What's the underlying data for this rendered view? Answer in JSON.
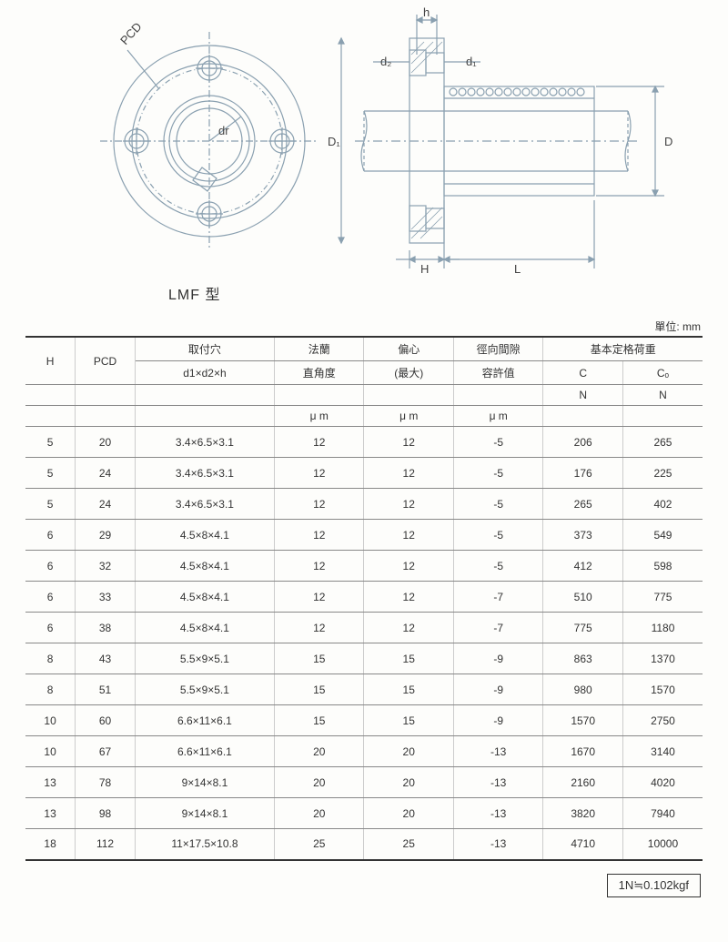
{
  "diagram": {
    "labels": {
      "pcd": "PCD",
      "dr": "dr",
      "h": "h",
      "d2": "d₂",
      "d1": "d₁",
      "D1": "D₁",
      "D": "D",
      "H": "H",
      "L": "L"
    },
    "model": "LMF 型",
    "stroke_color": "#8aa0b0",
    "stroke_dark": "#5a7080"
  },
  "unit_label": "單位: mm",
  "table": {
    "headers": {
      "h": "H",
      "pcd": "PCD",
      "mount": "取付穴",
      "mount_sub": "d1×d2×h",
      "flange": "法蘭",
      "flange_sub": "直角度",
      "ecc": "偏心",
      "ecc_sub": "(最大)",
      "radgap": "徑向間隙",
      "radgap_sub": "容許值",
      "load": "基本定格荷重",
      "c": "C",
      "co": "Cₒ",
      "n": "N",
      "um": "μ m"
    },
    "rows": [
      {
        "h": "5",
        "pcd": "20",
        "d": "3.4×6.5×3.1",
        "f": "12",
        "e": "12",
        "r": "-5",
        "c": "206",
        "co": "265"
      },
      {
        "h": "5",
        "pcd": "24",
        "d": "3.4×6.5×3.1",
        "f": "12",
        "e": "12",
        "r": "-5",
        "c": "176",
        "co": "225"
      },
      {
        "h": "5",
        "pcd": "24",
        "d": "3.4×6.5×3.1",
        "f": "12",
        "e": "12",
        "r": "-5",
        "c": "265",
        "co": "402"
      },
      {
        "h": "6",
        "pcd": "29",
        "d": "4.5×8×4.1",
        "f": "12",
        "e": "12",
        "r": "-5",
        "c": "373",
        "co": "549"
      },
      {
        "h": "6",
        "pcd": "32",
        "d": "4.5×8×4.1",
        "f": "12",
        "e": "12",
        "r": "-5",
        "c": "412",
        "co": "598"
      },
      {
        "h": "6",
        "pcd": "33",
        "d": "4.5×8×4.1",
        "f": "12",
        "e": "12",
        "r": "-7",
        "c": "510",
        "co": "775"
      },
      {
        "h": "6",
        "pcd": "38",
        "d": "4.5×8×4.1",
        "f": "12",
        "e": "12",
        "r": "-7",
        "c": "775",
        "co": "1180"
      },
      {
        "h": "8",
        "pcd": "43",
        "d": "5.5×9×5.1",
        "f": "15",
        "e": "15",
        "r": "-9",
        "c": "863",
        "co": "1370"
      },
      {
        "h": "8",
        "pcd": "51",
        "d": "5.5×9×5.1",
        "f": "15",
        "e": "15",
        "r": "-9",
        "c": "980",
        "co": "1570"
      },
      {
        "h": "10",
        "pcd": "60",
        "d": "6.6×11×6.1",
        "f": "15",
        "e": "15",
        "r": "-9",
        "c": "1570",
        "co": "2750"
      },
      {
        "h": "10",
        "pcd": "67",
        "d": "6.6×11×6.1",
        "f": "20",
        "e": "20",
        "r": "-13",
        "c": "1670",
        "co": "3140"
      },
      {
        "h": "13",
        "pcd": "78",
        "d": "9×14×8.1",
        "f": "20",
        "e": "20",
        "r": "-13",
        "c": "2160",
        "co": "4020"
      },
      {
        "h": "13",
        "pcd": "98",
        "d": "9×14×8.1",
        "f": "20",
        "e": "20",
        "r": "-13",
        "c": "3820",
        "co": "7940"
      },
      {
        "h": "18",
        "pcd": "112",
        "d": "11×17.5×10.8",
        "f": "25",
        "e": "25",
        "r": "-13",
        "c": "4710",
        "co": "10000"
      }
    ]
  },
  "footer": "1N≒0.102kgf"
}
